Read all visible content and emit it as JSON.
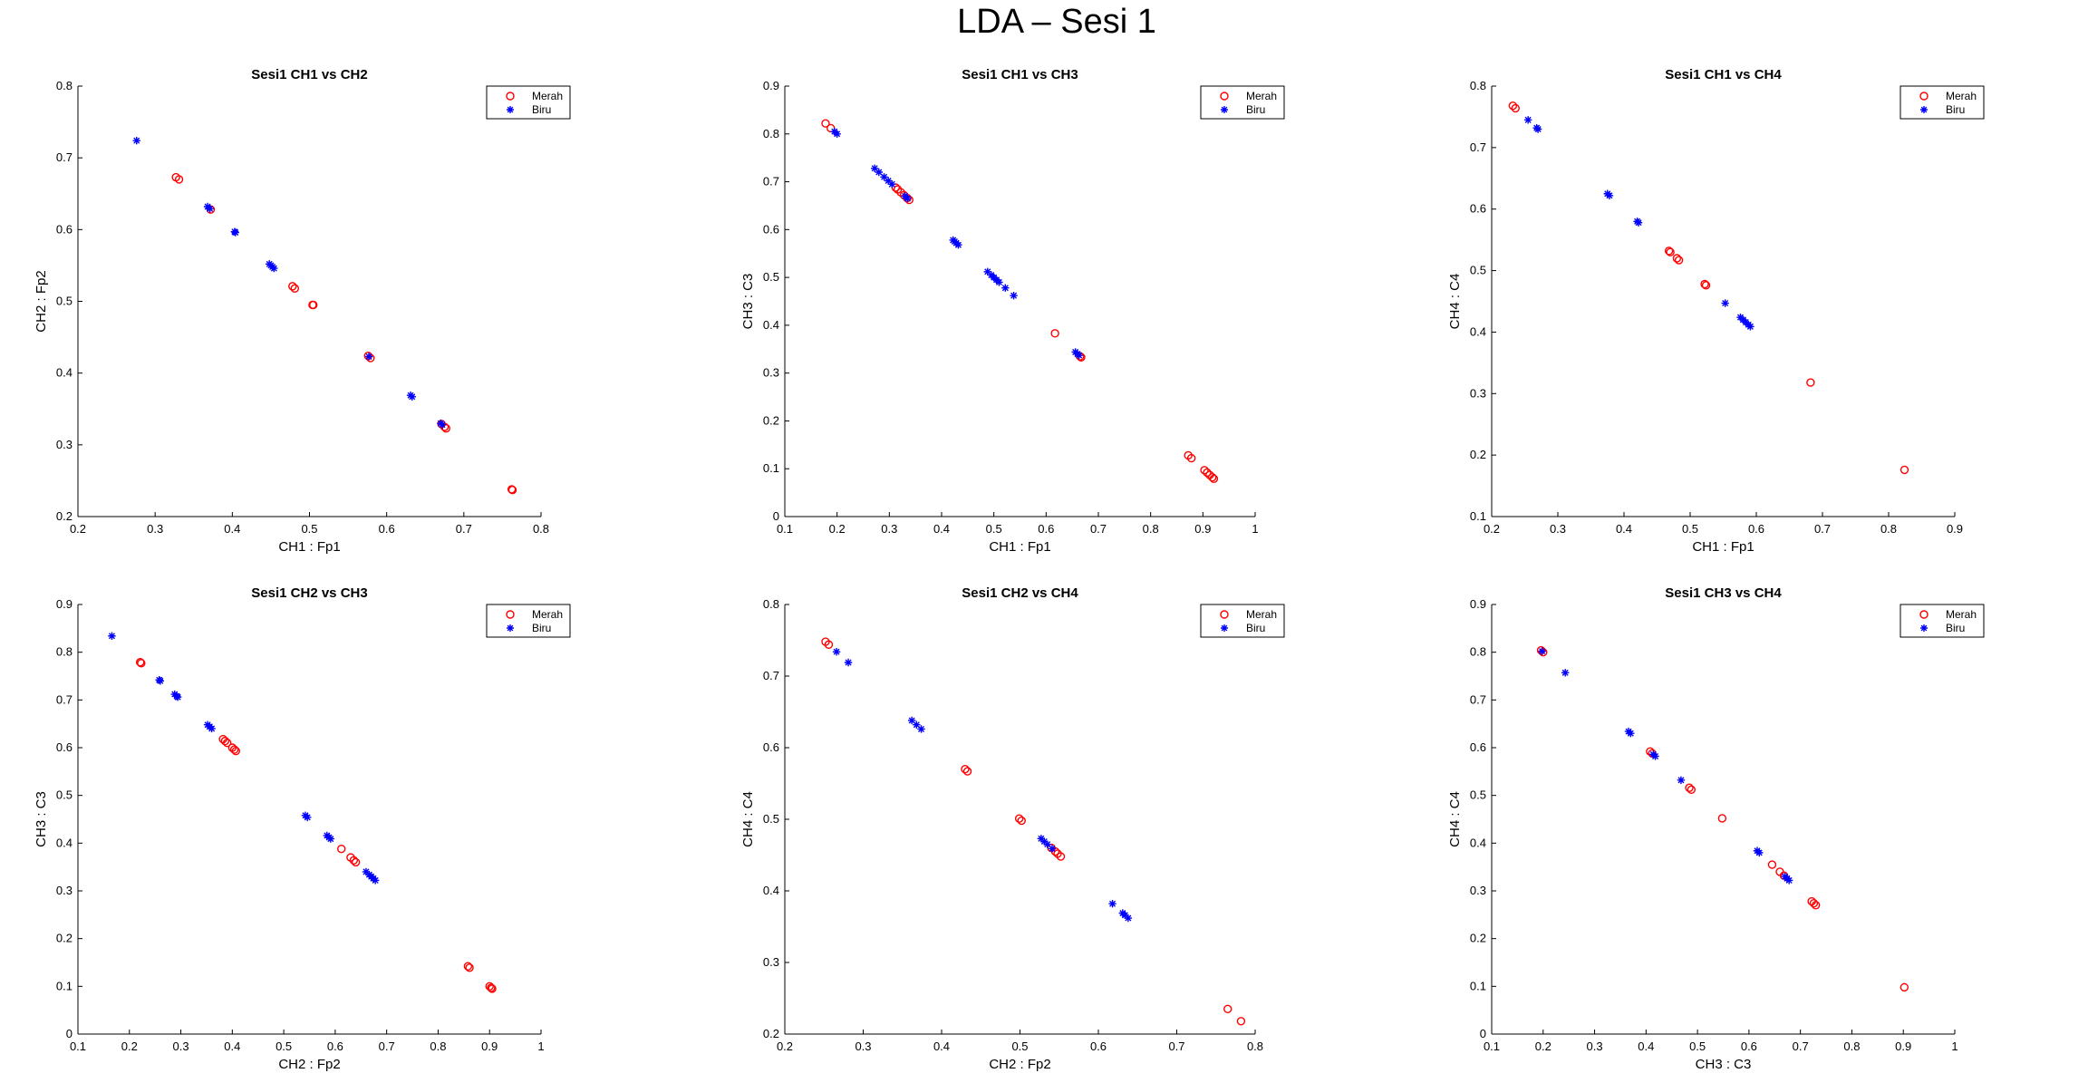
{
  "suptitle": "LDA – Sesi 1",
  "colors": {
    "merah": "#ff0000",
    "biru": "#0000ff",
    "axis": "#000000"
  },
  "legend_labels": [
    "Merah",
    "Biru"
  ],
  "chart_data": [
    {
      "type": "scatter",
      "title": "Sesi1 CH1 vs CH2",
      "xlabel": "CH1 : Fp1",
      "ylabel": "CH2 : Fp2",
      "xlim": [
        0.2,
        0.8
      ],
      "ylim": [
        0.2,
        0.8
      ],
      "xticks": [
        0.2,
        0.3,
        0.4,
        0.5,
        0.6,
        0.7,
        0.8
      ],
      "yticks": [
        0.2,
        0.3,
        0.4,
        0.5,
        0.6,
        0.7,
        0.8
      ],
      "legend": "top-right",
      "series": [
        {
          "name": "Merah",
          "marker": "circle",
          "color": "#ff0000",
          "points": [
            [
              0.327,
              0.673
            ],
            [
              0.331,
              0.67
            ],
            [
              0.372,
              0.628
            ],
            [
              0.478,
              0.521
            ],
            [
              0.481,
              0.518
            ],
            [
              0.504,
              0.495
            ],
            [
              0.505,
              0.495
            ],
            [
              0.576,
              0.424
            ],
            [
              0.579,
              0.421
            ],
            [
              0.671,
              0.329
            ],
            [
              0.675,
              0.325
            ],
            [
              0.677,
              0.323
            ],
            [
              0.762,
              0.238
            ],
            [
              0.763,
              0.237
            ]
          ]
        },
        {
          "name": "Biru",
          "marker": "star",
          "color": "#0000ff",
          "points": [
            [
              0.276,
              0.724
            ],
            [
              0.368,
              0.632
            ],
            [
              0.371,
              0.629
            ],
            [
              0.403,
              0.597
            ],
            [
              0.404,
              0.596
            ],
            [
              0.448,
              0.552
            ],
            [
              0.45,
              0.55
            ],
            [
              0.452,
              0.548
            ],
            [
              0.454,
              0.546
            ],
            [
              0.577,
              0.423
            ],
            [
              0.631,
              0.369
            ],
            [
              0.633,
              0.367
            ],
            [
              0.67,
              0.33
            ],
            [
              0.672,
              0.328
            ]
          ]
        }
      ]
    },
    {
      "type": "scatter",
      "title": "Sesi1 CH1 vs CH3",
      "xlabel": "CH1 : Fp1",
      "ylabel": "CH3 : C3",
      "xlim": [
        0.1,
        1.0
      ],
      "ylim": [
        0,
        0.9
      ],
      "xticks": [
        0.1,
        0.2,
        0.3,
        0.4,
        0.5,
        0.6,
        0.7,
        0.8,
        0.9,
        1
      ],
      "yticks": [
        0,
        0.1,
        0.2,
        0.3,
        0.4,
        0.5,
        0.6,
        0.7,
        0.8,
        0.9
      ],
      "legend": "top-right",
      "series": [
        {
          "name": "Merah",
          "marker": "circle",
          "color": "#ff0000",
          "points": [
            [
              0.178,
              0.822
            ],
            [
              0.188,
              0.812
            ],
            [
              0.312,
              0.688
            ],
            [
              0.316,
              0.684
            ],
            [
              0.322,
              0.678
            ],
            [
              0.328,
              0.672
            ],
            [
              0.334,
              0.666
            ],
            [
              0.338,
              0.662
            ],
            [
              0.617,
              0.383
            ],
            [
              0.665,
              0.335
            ],
            [
              0.667,
              0.333
            ],
            [
              0.872,
              0.128
            ],
            [
              0.878,
              0.122
            ],
            [
              0.903,
              0.097
            ],
            [
              0.908,
              0.092
            ],
            [
              0.913,
              0.087
            ],
            [
              0.918,
              0.082
            ],
            [
              0.921,
              0.079
            ]
          ]
        },
        {
          "name": "Biru",
          "marker": "star",
          "color": "#0000ff",
          "points": [
            [
              0.195,
              0.805
            ],
            [
              0.2,
              0.8
            ],
            [
              0.272,
              0.728
            ],
            [
              0.28,
              0.72
            ],
            [
              0.29,
              0.71
            ],
            [
              0.298,
              0.702
            ],
            [
              0.305,
              0.695
            ],
            [
              0.33,
              0.67
            ],
            [
              0.335,
              0.665
            ],
            [
              0.422,
              0.578
            ],
            [
              0.425,
              0.575
            ],
            [
              0.428,
              0.572
            ],
            [
              0.432,
              0.568
            ],
            [
              0.488,
              0.512
            ],
            [
              0.495,
              0.505
            ],
            [
              0.5,
              0.5
            ],
            [
              0.505,
              0.495
            ],
            [
              0.51,
              0.49
            ],
            [
              0.522,
              0.478
            ],
            [
              0.538,
              0.462
            ],
            [
              0.656,
              0.344
            ],
            [
              0.66,
              0.34
            ],
            [
              0.663,
              0.337
            ]
          ]
        }
      ]
    },
    {
      "type": "scatter",
      "title": "Sesi1 CH1 vs CH4",
      "xlabel": "CH1 : Fp1",
      "ylabel": "CH4 : C4",
      "xlim": [
        0.2,
        0.9
      ],
      "ylim": [
        0.1,
        0.8
      ],
      "xticks": [
        0.2,
        0.3,
        0.4,
        0.5,
        0.6,
        0.7,
        0.8,
        0.9
      ],
      "yticks": [
        0.1,
        0.2,
        0.3,
        0.4,
        0.5,
        0.6,
        0.7,
        0.8
      ],
      "legend": "top-right",
      "series": [
        {
          "name": "Merah",
          "marker": "circle",
          "color": "#ff0000",
          "points": [
            [
              0.232,
              0.768
            ],
            [
              0.236,
              0.764
            ],
            [
              0.468,
              0.532
            ],
            [
              0.47,
              0.53
            ],
            [
              0.48,
              0.52
            ],
            [
              0.483,
              0.517
            ],
            [
              0.522,
              0.478
            ],
            [
              0.524,
              0.476
            ],
            [
              0.682,
              0.318
            ],
            [
              0.824,
              0.176
            ]
          ]
        },
        {
          "name": "Biru",
          "marker": "star",
          "color": "#0000ff",
          "points": [
            [
              0.255,
              0.745
            ],
            [
              0.268,
              0.732
            ],
            [
              0.27,
              0.73
            ],
            [
              0.375,
              0.625
            ],
            [
              0.378,
              0.622
            ],
            [
              0.42,
              0.58
            ],
            [
              0.422,
              0.578
            ],
            [
              0.553,
              0.447
            ],
            [
              0.576,
              0.424
            ],
            [
              0.58,
              0.42
            ],
            [
              0.584,
              0.416
            ],
            [
              0.588,
              0.412
            ],
            [
              0.591,
              0.409
            ]
          ]
        }
      ]
    },
    {
      "type": "scatter",
      "title": "Sesi1 CH2 vs CH3",
      "xlabel": "CH2 : Fp2",
      "ylabel": "CH3 : C3",
      "xlim": [
        0.1,
        1.0
      ],
      "ylim": [
        0,
        0.9
      ],
      "xticks": [
        0.1,
        0.2,
        0.3,
        0.4,
        0.5,
        0.6,
        0.7,
        0.8,
        0.9,
        1
      ],
      "yticks": [
        0,
        0.1,
        0.2,
        0.3,
        0.4,
        0.5,
        0.6,
        0.7,
        0.8,
        0.9
      ],
      "legend": "top-right",
      "series": [
        {
          "name": "Merah",
          "marker": "circle",
          "color": "#ff0000",
          "points": [
            [
              0.221,
              0.779
            ],
            [
              0.223,
              0.777
            ],
            [
              0.382,
              0.618
            ],
            [
              0.386,
              0.614
            ],
            [
              0.39,
              0.61
            ],
            [
              0.4,
              0.6
            ],
            [
              0.404,
              0.596
            ],
            [
              0.407,
              0.593
            ],
            [
              0.612,
              0.388
            ],
            [
              0.63,
              0.37
            ],
            [
              0.636,
              0.364
            ],
            [
              0.64,
              0.36
            ],
            [
              0.858,
              0.142
            ],
            [
              0.861,
              0.139
            ],
            [
              0.9,
              0.1
            ],
            [
              0.903,
              0.097
            ],
            [
              0.905,
              0.095
            ]
          ]
        },
        {
          "name": "Biru",
          "marker": "star",
          "color": "#0000ff",
          "points": [
            [
              0.166,
              0.834
            ],
            [
              0.258,
              0.742
            ],
            [
              0.26,
              0.74
            ],
            [
              0.288,
              0.712
            ],
            [
              0.292,
              0.708
            ],
            [
              0.294,
              0.706
            ],
            [
              0.352,
              0.648
            ],
            [
              0.356,
              0.644
            ],
            [
              0.36,
              0.64
            ],
            [
              0.542,
              0.458
            ],
            [
              0.546,
              0.454
            ],
            [
              0.584,
              0.416
            ],
            [
              0.588,
              0.412
            ],
            [
              0.591,
              0.409
            ],
            [
              0.66,
              0.34
            ],
            [
              0.666,
              0.334
            ],
            [
              0.67,
              0.33
            ],
            [
              0.674,
              0.326
            ],
            [
              0.678,
              0.322
            ]
          ]
        }
      ]
    },
    {
      "type": "scatter",
      "title": "Sesi1 CH2 vs CH4",
      "xlabel": "CH2 : Fp2",
      "ylabel": "CH4 : C4",
      "xlim": [
        0.2,
        0.8
      ],
      "ylim": [
        0.2,
        0.8
      ],
      "xticks": [
        0.2,
        0.3,
        0.4,
        0.5,
        0.6,
        0.7,
        0.8
      ],
      "yticks": [
        0.2,
        0.3,
        0.4,
        0.5,
        0.6,
        0.7,
        0.8
      ],
      "legend": "top-right",
      "series": [
        {
          "name": "Merah",
          "marker": "circle",
          "color": "#ff0000",
          "points": [
            [
              0.252,
              0.748
            ],
            [
              0.256,
              0.744
            ],
            [
              0.43,
              0.57
            ],
            [
              0.433,
              0.567
            ],
            [
              0.499,
              0.501
            ],
            [
              0.502,
              0.498
            ],
            [
              0.54,
              0.46
            ],
            [
              0.545,
              0.455
            ],
            [
              0.548,
              0.452
            ],
            [
              0.552,
              0.448
            ],
            [
              0.765,
              0.235
            ],
            [
              0.782,
              0.218
            ]
          ]
        },
        {
          "name": "Biru",
          "marker": "star",
          "color": "#0000ff",
          "points": [
            [
              0.266,
              0.734
            ],
            [
              0.281,
              0.719
            ],
            [
              0.362,
              0.638
            ],
            [
              0.368,
              0.632
            ],
            [
              0.374,
              0.626
            ],
            [
              0.527,
              0.473
            ],
            [
              0.531,
              0.469
            ],
            [
              0.535,
              0.465
            ],
            [
              0.541,
              0.459
            ],
            [
              0.618,
              0.382
            ],
            [
              0.631,
              0.369
            ],
            [
              0.634,
              0.366
            ],
            [
              0.638,
              0.362
            ]
          ]
        }
      ]
    },
    {
      "type": "scatter",
      "title": "Sesi1 CH3 vs CH4",
      "xlabel": "CH3 : C3",
      "ylabel": "CH4 : C4",
      "xlim": [
        0.1,
        1.0
      ],
      "ylim": [
        0,
        0.9
      ],
      "xticks": [
        0.1,
        0.2,
        0.3,
        0.4,
        0.5,
        0.6,
        0.7,
        0.8,
        0.9,
        1
      ],
      "yticks": [
        0,
        0.1,
        0.2,
        0.3,
        0.4,
        0.5,
        0.6,
        0.7,
        0.8,
        0.9
      ],
      "legend": "top-right",
      "series": [
        {
          "name": "Merah",
          "marker": "circle",
          "color": "#ff0000",
          "points": [
            [
              0.196,
              0.804
            ],
            [
              0.2,
              0.8
            ],
            [
              0.408,
              0.592
            ],
            [
              0.412,
              0.588
            ],
            [
              0.484,
              0.516
            ],
            [
              0.488,
              0.512
            ],
            [
              0.548,
              0.452
            ],
            [
              0.645,
              0.355
            ],
            [
              0.66,
              0.34
            ],
            [
              0.668,
              0.332
            ],
            [
              0.722,
              0.278
            ],
            [
              0.726,
              0.274
            ],
            [
              0.73,
              0.27
            ],
            [
              0.902,
              0.098
            ]
          ]
        },
        {
          "name": "Biru",
          "marker": "star",
          "color": "#0000ff",
          "points": [
            [
              0.198,
              0.802
            ],
            [
              0.243,
              0.757
            ],
            [
              0.366,
              0.634
            ],
            [
              0.37,
              0.63
            ],
            [
              0.414,
              0.586
            ],
            [
              0.418,
              0.582
            ],
            [
              0.468,
              0.532
            ],
            [
              0.616,
              0.384
            ],
            [
              0.62,
              0.38
            ],
            [
              0.67,
              0.33
            ],
            [
              0.674,
              0.326
            ],
            [
              0.678,
              0.322
            ]
          ]
        }
      ]
    }
  ]
}
